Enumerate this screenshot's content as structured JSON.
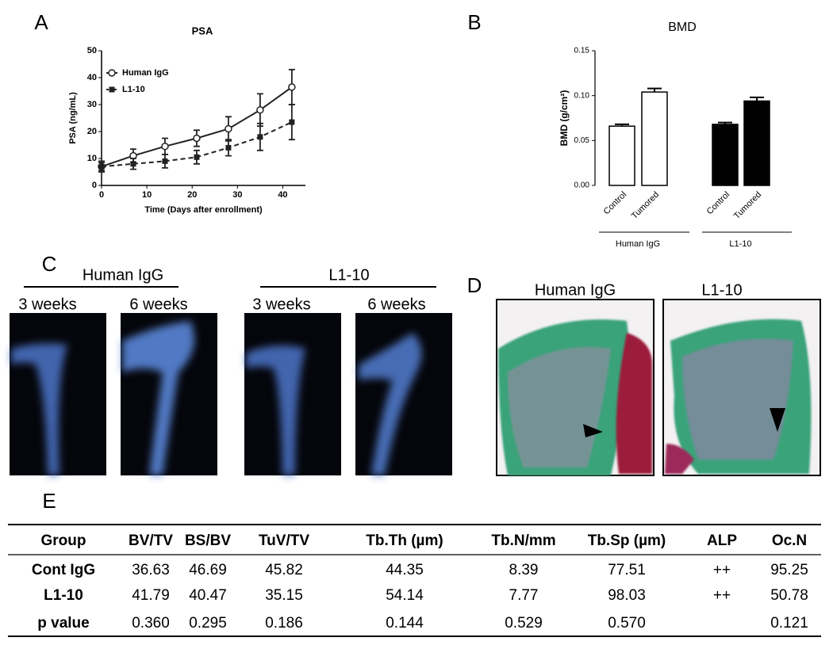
{
  "chart_data": [
    {
      "type": "line",
      "panel": "A",
      "title": "PSA",
      "x_label": "Time (Days after enrollment)",
      "y_label": "PSA (ng/mL)",
      "x": [
        0,
        7,
        14,
        21,
        28,
        35,
        42
      ],
      "series": [
        {
          "name": "Human IgG",
          "color": "#222222",
          "marker": "circle",
          "dashed": false,
          "values": [
            7,
            11,
            14.5,
            17.5,
            21,
            28,
            36.5
          ],
          "errors": [
            2,
            2.5,
            3,
            3,
            4.5,
            6,
            6.5
          ]
        },
        {
          "name": "L1-10",
          "color": "#222222",
          "marker": "square",
          "dashed": true,
          "values": [
            7,
            8,
            9,
            10.5,
            14,
            18,
            23.5
          ],
          "errors": [
            1.5,
            2,
            2.5,
            2.5,
            3,
            5,
            6.5
          ]
        }
      ],
      "xlim": [
        0,
        45
      ],
      "xticks": [
        0,
        10,
        20,
        30,
        40
      ],
      "ylim": [
        0,
        50
      ],
      "yticks": [
        0,
        10,
        20,
        30,
        40,
        50
      ],
      "legend": "top-left"
    },
    {
      "type": "bar",
      "panel": "B",
      "title": "BMD",
      "y_label": "BMD (g/cm²)",
      "categories": [
        "Control",
        "Tumored",
        "Control",
        "Tumored"
      ],
      "values": [
        0.066,
        0.104,
        0.068,
        0.094
      ],
      "errors": [
        0.002,
        0.004,
        0.002,
        0.004
      ],
      "colors": [
        "#ffffff",
        "#ffffff",
        "#000000",
        "#000000"
      ],
      "groups": [
        "Human IgG",
        "L1-10"
      ],
      "ylim": [
        0,
        0.15
      ],
      "yticks": [
        {
          "value": 0,
          "label": "0.00"
        },
        {
          "value": 0.05,
          "label": "0.05"
        },
        {
          "value": 0.1,
          "label": "0.10"
        },
        {
          "value": 0.15,
          "label": "0.15"
        }
      ]
    }
  ],
  "xray": {
    "panel": "C",
    "groups": [
      {
        "label": "Human IgG",
        "times": [
          "3 weeks",
          "6 weeks"
        ]
      },
      {
        "label": "L1-10",
        "times": [
          "3 weeks",
          "6 weeks"
        ]
      }
    ]
  },
  "histology": {
    "panel": "D",
    "labels": [
      "Human IgG",
      "L1-10"
    ]
  },
  "table": {
    "panel": "E",
    "header": [
      "Group",
      "BV/TV",
      "BS/BV",
      "TuV/TV",
      "Tb.Th (µm)",
      "Tb.N/mm",
      "Tb.Sp (µm)",
      "ALP",
      "Oc.N"
    ],
    "rows": [
      [
        "Cont IgG",
        "36.63",
        "46.69",
        "45.82",
        "44.35",
        "8.39",
        "77.51",
        "++",
        "95.25"
      ],
      [
        "L1-10",
        "41.79",
        "40.47",
        "35.15",
        "54.14",
        "7.77",
        "98.03",
        "++",
        "50.78"
      ],
      [
        "p value",
        "0.360",
        "0.295",
        "0.186",
        "0.144",
        "0.529",
        "0.570",
        null,
        "0.121"
      ]
    ]
  }
}
